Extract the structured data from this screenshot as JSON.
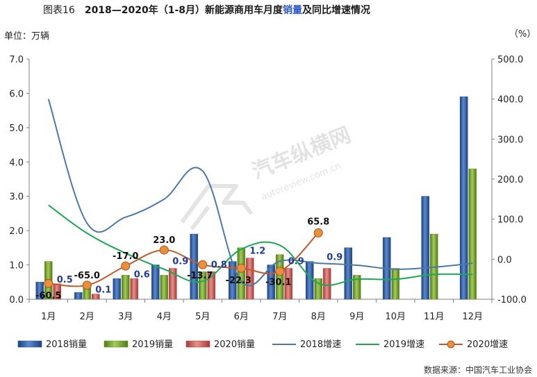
{
  "header": {
    "figure_no": "图表16",
    "title_part1": "2018—2020年（1-8月）新能源商用车月度",
    "title_highlight": "销量",
    "title_part2": "及同比增速情况",
    "left_unit": "单位：万辆",
    "right_unit": "（%）"
  },
  "watermark": {
    "main": "汽车纵横网",
    "sub": "autoreview.com.cn"
  },
  "source": "数据来源：中国汽车工业协会",
  "colors": {
    "s2018": "#2E5C9E",
    "s2019": "#6F9A2C",
    "s2020": "#C0504D",
    "g2018": "#4A78A8",
    "g2019": "#1AAA55",
    "g2020": "#C55A28",
    "label_blue": "#1F3C99"
  },
  "chart_data": {
    "type": "bar",
    "categories": [
      "1月",
      "2月",
      "3月",
      "4月",
      "5月",
      "6月",
      "7月",
      "8月",
      "9月",
      "10月",
      "11月",
      "12月"
    ],
    "y_left": {
      "ylim": [
        0,
        7
      ],
      "ticks": [
        "0.0",
        "1.0",
        "2.0",
        "3.0",
        "4.0",
        "5.0",
        "6.0",
        "7.0"
      ]
    },
    "y_right": {
      "ylim": [
        -100,
        500
      ],
      "ticks": [
        "-100.0",
        "0.0",
        "100.0",
        "200.0",
        "300.0",
        "400.0",
        "500.0"
      ]
    },
    "bar_series": [
      {
        "name": "2018销量",
        "values": [
          0.5,
          0.2,
          0.6,
          1.0,
          1.9,
          1.1,
          1.0,
          1.1,
          1.5,
          1.8,
          3.0,
          5.9
        ]
      },
      {
        "name": "2019销量",
        "values": [
          1.1,
          0.35,
          0.7,
          0.7,
          0.8,
          1.5,
          1.3,
          0.6,
          0.7,
          0.9,
          1.9,
          3.8
        ]
      },
      {
        "name": "2020销量",
        "values": [
          0.45,
          0.15,
          0.6,
          0.9,
          0.8,
          1.2,
          0.9,
          0.9
        ],
        "labels": [
          "0.5",
          "0.1",
          "0.6",
          "0.9",
          "0.8",
          "1.2",
          "0.9",
          "0.9"
        ]
      }
    ],
    "line_series": [
      {
        "name": "2018增速",
        "values": [
          400,
          90,
          105,
          150,
          220,
          -55,
          -5,
          -10,
          -15,
          -25,
          -20,
          -10
        ]
      },
      {
        "name": "2019增速",
        "values": [
          135,
          65,
          15,
          -25,
          -55,
          25,
          35,
          -60,
          -50,
          -50,
          -38,
          -38
        ]
      },
      {
        "name": "2020增速",
        "values": [
          -60.5,
          -65.0,
          -17.0,
          23.0,
          -13.7,
          -22.3,
          -30.1,
          65.8
        ],
        "labels": [
          "-60.5",
          "-65.0",
          "-17.0",
          "23.0",
          "-13.7",
          "-22.3",
          "-30.1",
          "65.8"
        ]
      }
    ],
    "legend_position": "bottom"
  }
}
